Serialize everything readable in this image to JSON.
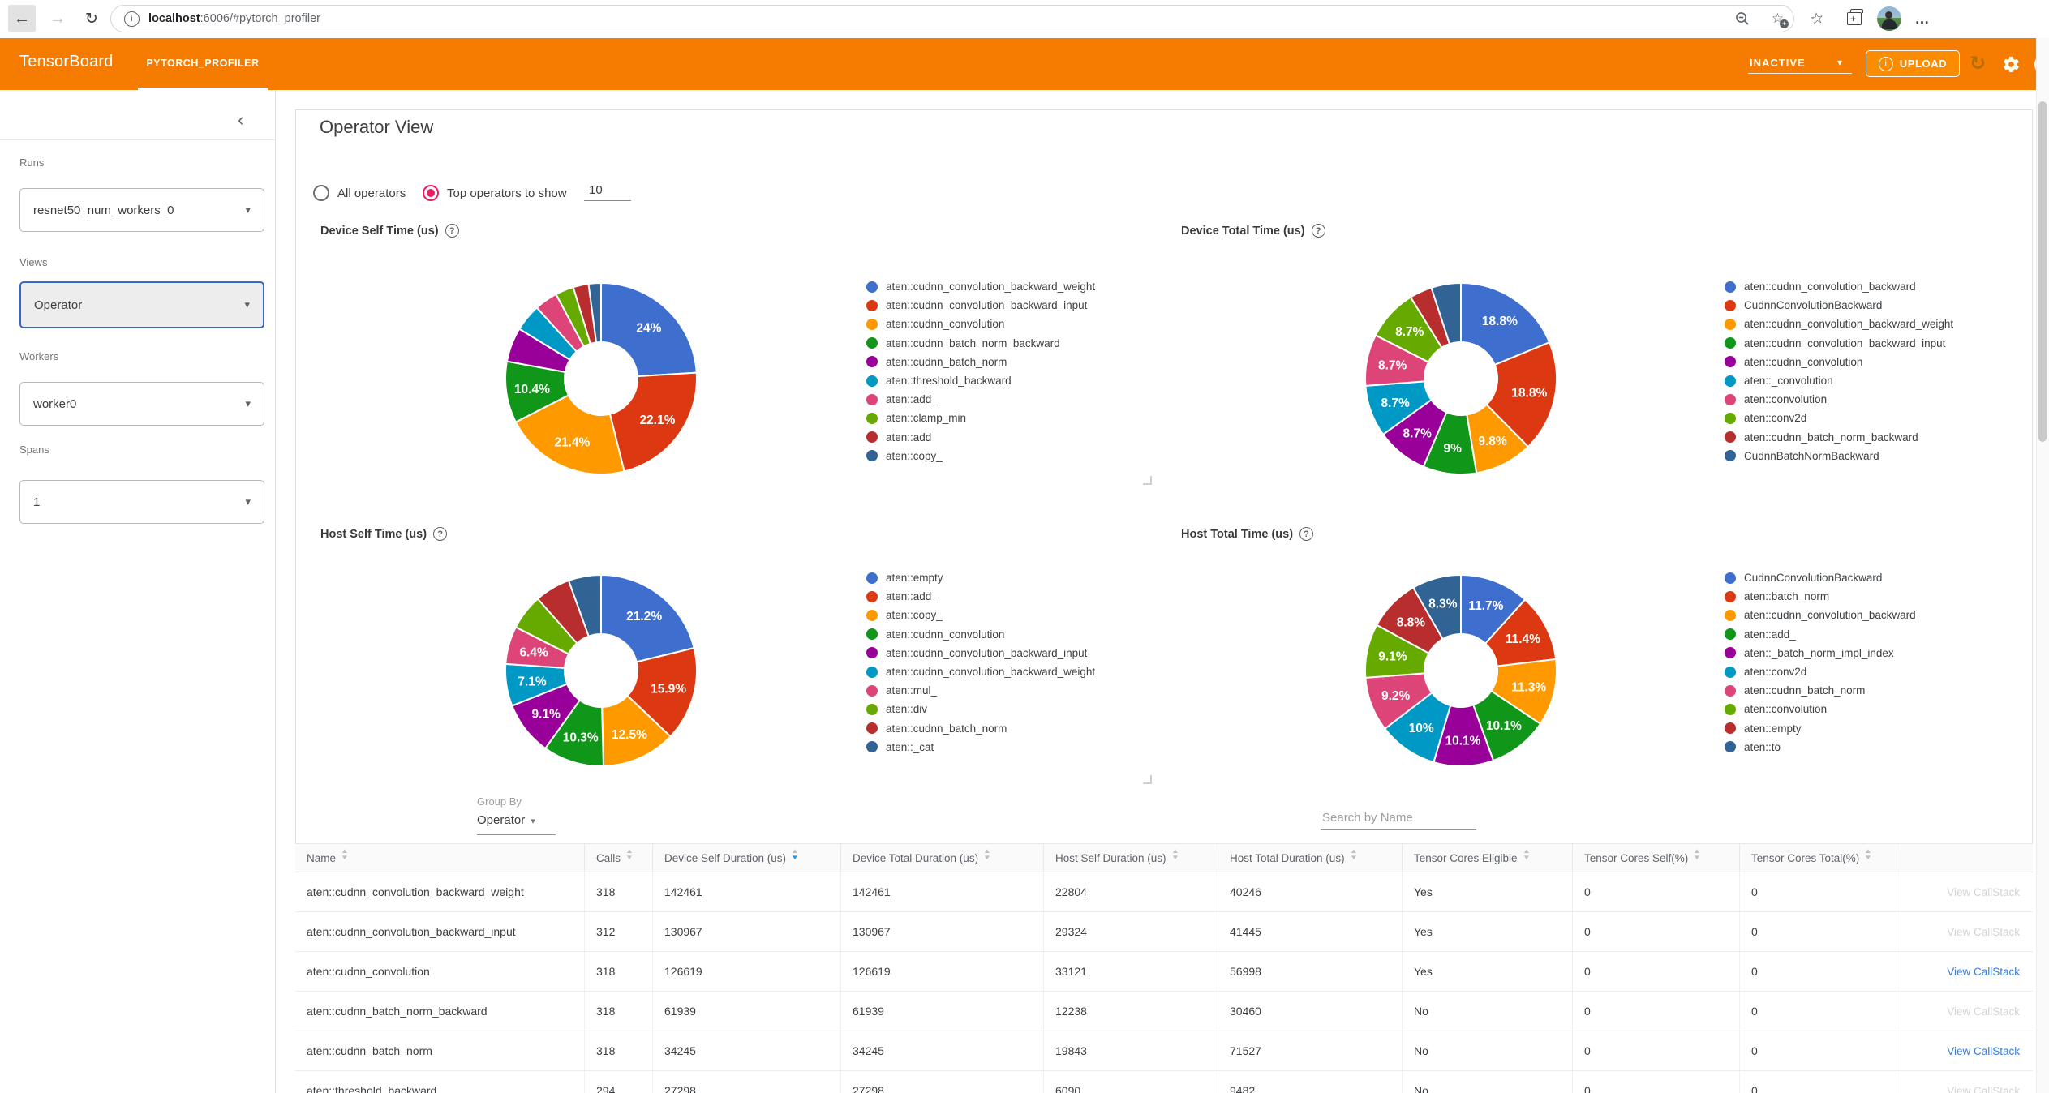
{
  "browser": {
    "url_host": "localhost",
    "url_rest": ":6006/#pytorch_profiler"
  },
  "header": {
    "brand": "TensorBoard",
    "tab": "PYTORCH_PROFILER",
    "status_value": "INACTIVE",
    "upload_label": "UPLOAD"
  },
  "sidebar": {
    "runs_label": "Runs",
    "runs_value": "resnet50_num_workers_0",
    "views_label": "Views",
    "views_value": "Operator",
    "workers_label": "Workers",
    "workers_value": "worker0",
    "spans_label": "Spans",
    "spans_value": "1"
  },
  "view": {
    "title": "Operator View",
    "radio_all_label": "All operators",
    "radio_top_label": "Top operators to show",
    "top_value": "10"
  },
  "chart_data": [
    {
      "type": "pie",
      "title": "Device Self Time (us)",
      "legend_position": "right",
      "categories": [
        "aten::cudnn_convolution_backward_weight",
        "aten::cudnn_convolution_backward_input",
        "aten::cudnn_convolution",
        "aten::cudnn_batch_norm_backward",
        "aten::cudnn_batch_norm",
        "aten::threshold_backward",
        "aten::add_",
        "aten::clamp_min",
        "aten::add",
        "aten::copy_"
      ],
      "values": [
        24,
        22.1,
        21.4,
        10.4,
        5.8,
        4.6,
        3.9,
        3.1,
        2.6,
        2.1
      ],
      "slice_labels": [
        "24%",
        "22.1%",
        "21.4%",
        "10.4%",
        null,
        null,
        null,
        null,
        null,
        null
      ]
    },
    {
      "type": "pie",
      "title": "Device Total Time (us)",
      "legend_position": "right",
      "categories": [
        "aten::cudnn_convolution_backward",
        "CudnnConvolutionBackward",
        "aten::cudnn_convolution_backward_weight",
        "aten::cudnn_convolution_backward_input",
        "aten::cudnn_convolution",
        "aten::_convolution",
        "aten::convolution",
        "aten::conv2d",
        "aten::cudnn_batch_norm_backward",
        "CudnnBatchNormBackward"
      ],
      "values": [
        18.8,
        18.8,
        9.8,
        9,
        8.7,
        8.7,
        8.7,
        8.7,
        3.8,
        5.0
      ],
      "slice_labels": [
        "18.8%",
        "18.8%",
        "9.8%",
        "9%",
        "8.7%",
        "8.7%",
        "8.7%",
        "8.7%",
        null,
        null
      ]
    },
    {
      "type": "pie",
      "title": "Host Self Time (us)",
      "legend_position": "right",
      "categories": [
        "aten::empty",
        "aten::add_",
        "aten::copy_",
        "aten::cudnn_convolution",
        "aten::cudnn_convolution_backward_input",
        "aten::cudnn_convolution_backward_weight",
        "aten::mul_",
        "aten::div",
        "aten::cudnn_batch_norm",
        "aten::_cat"
      ],
      "values": [
        21.2,
        15.9,
        12.5,
        10.3,
        9.1,
        7.1,
        6.4,
        6.0,
        6.0,
        5.5
      ],
      "slice_labels": [
        "21.2%",
        "15.9%",
        "12.5%",
        "10.3%",
        "9.1%",
        "7.1%",
        "6.4%",
        null,
        null,
        null
      ]
    },
    {
      "type": "pie",
      "title": "Host Total Time (us)",
      "legend_position": "right",
      "categories": [
        "CudnnConvolutionBackward",
        "aten::batch_norm",
        "aten::cudnn_convolution_backward",
        "aten::add_",
        "aten::_batch_norm_impl_index",
        "aten::conv2d",
        "aten::cudnn_batch_norm",
        "aten::convolution",
        "aten::empty",
        "aten::to"
      ],
      "values": [
        11.7,
        11.4,
        11.3,
        10.1,
        10.1,
        10,
        9.2,
        9.1,
        8.8,
        8.3
      ],
      "slice_labels": [
        "11.7%",
        "11.4%",
        "11.3%",
        "10.1%",
        "10.1%",
        "10%",
        "9.2%",
        "9.1%",
        "8.8%",
        "8.3%"
      ]
    }
  ],
  "table": {
    "group_by_label": "Group By",
    "group_by_value": "Operator",
    "search_placeholder": "Search by Name",
    "callstack_label": "View CallStack",
    "columns": [
      {
        "label": "Name",
        "sort": "none"
      },
      {
        "label": "Calls",
        "sort": "none"
      },
      {
        "label": "Device Self Duration (us)",
        "sort": "desc"
      },
      {
        "label": "Device Total Duration (us)",
        "sort": "none"
      },
      {
        "label": "Host Self Duration (us)",
        "sort": "none"
      },
      {
        "label": "Host Total Duration (us)",
        "sort": "none"
      },
      {
        "label": "Tensor Cores Eligible",
        "sort": "none"
      },
      {
        "label": "Tensor Cores Self(%)",
        "sort": "none"
      },
      {
        "label": "Tensor Cores Total(%)",
        "sort": "none"
      },
      {
        "label": "",
        "sort": null
      }
    ],
    "rows": [
      {
        "name": "aten::cudnn_convolution_backward_weight",
        "calls": "318",
        "device_self": "142461",
        "device_total": "142461",
        "host_self": "22804",
        "host_total": "40246",
        "tc_eligible": "Yes",
        "tc_self": "0",
        "tc_total": "0",
        "callstack_active": false
      },
      {
        "name": "aten::cudnn_convolution_backward_input",
        "calls": "312",
        "device_self": "130967",
        "device_total": "130967",
        "host_self": "29324",
        "host_total": "41445",
        "tc_eligible": "Yes",
        "tc_self": "0",
        "tc_total": "0",
        "callstack_active": false
      },
      {
        "name": "aten::cudnn_convolution",
        "calls": "318",
        "device_self": "126619",
        "device_total": "126619",
        "host_self": "33121",
        "host_total": "56998",
        "tc_eligible": "Yes",
        "tc_self": "0",
        "tc_total": "0",
        "callstack_active": true
      },
      {
        "name": "aten::cudnn_batch_norm_backward",
        "calls": "318",
        "device_self": "61939",
        "device_total": "61939",
        "host_self": "12238",
        "host_total": "30460",
        "tc_eligible": "No",
        "tc_self": "0",
        "tc_total": "0",
        "callstack_active": false
      },
      {
        "name": "aten::cudnn_batch_norm",
        "calls": "318",
        "device_self": "34245",
        "device_total": "34245",
        "host_self": "19843",
        "host_total": "71527",
        "tc_eligible": "No",
        "tc_self": "0",
        "tc_total": "0",
        "callstack_active": true
      },
      {
        "name": "aten::threshold_backward",
        "calls": "294",
        "device_self": "27298",
        "device_total": "27298",
        "host_self": "6090",
        "host_total": "9482",
        "tc_eligible": "No",
        "tc_self": "0",
        "tc_total": "0",
        "callstack_active": false
      }
    ]
  },
  "colors": {
    "accent": "#f57c00",
    "palette": [
      "#3e6fce",
      "#dc3912",
      "#ff9900",
      "#109618",
      "#990099",
      "#0099c6",
      "#dd4477",
      "#66aa00",
      "#b82e2e",
      "#316395"
    ],
    "link_active": "#3b7dd8",
    "link_inactive": "#d4d4d4",
    "sort_active": "#2196f3",
    "radio_selected": "#e91e63"
  },
  "icons": {
    "back": "←",
    "forward": "→",
    "refresh": "↻",
    "more": "…",
    "caret_down": "▾",
    "sort_up": "▲",
    "sort_down": "▼",
    "chevron_left": "‹",
    "help": "?",
    "info": "i",
    "star": "☆",
    "plus": "+"
  }
}
